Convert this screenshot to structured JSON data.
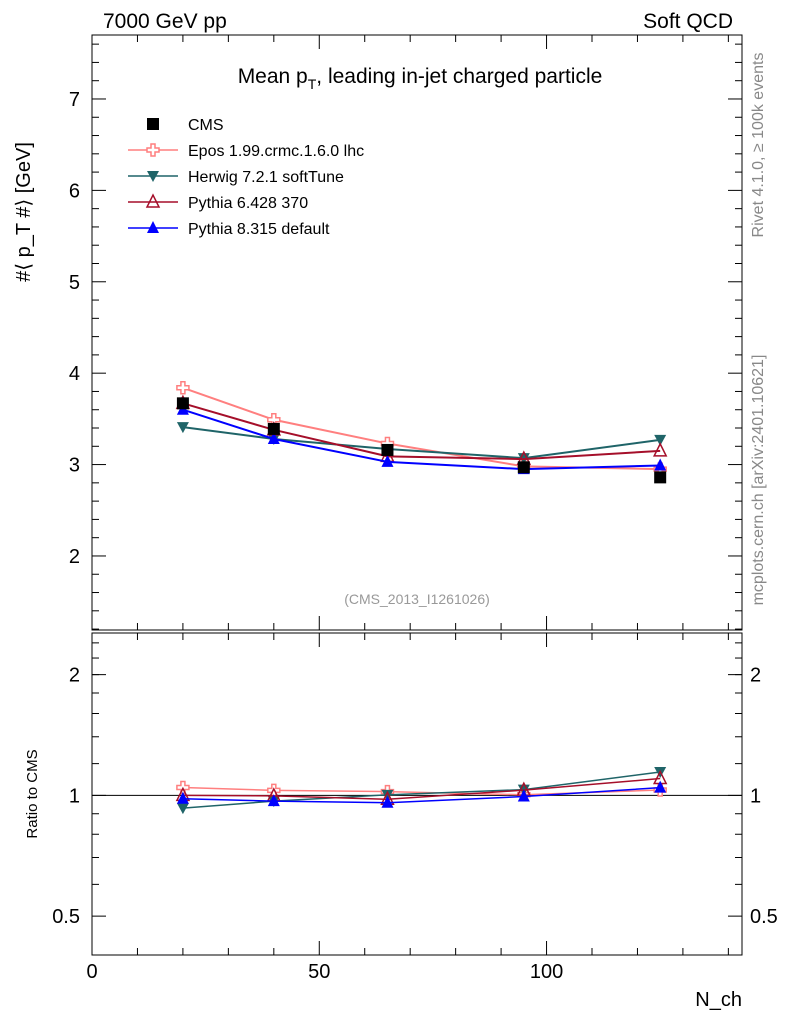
{
  "header": {
    "left": "7000 GeV pp",
    "right": "Soft QCD"
  },
  "side_labels": {
    "top": "Rivet 4.1.0, ≥ 100k events",
    "bottom": "mcplots.cern.ch [arXiv:2401.10621]"
  },
  "chart_data": [
    {
      "type": "line",
      "title": "Mean p_T, leading in-jet charged particle",
      "title_main": "Mean p",
      "title_sub": "T",
      "title_rest": ", leading in-jet charged particle",
      "ylabel": "#⟨ p_T #⟩ [GeV]",
      "ylabel_pre": "#⟨ p",
      "ylabel_sub": "T",
      "ylabel_post": " #⟩ [GeV]",
      "xlabel": "N_ch",
      "xlabel_main": "N",
      "xlabel_sub": "ch",
      "annotation": "(CMS_2013_I1261026)",
      "xlim": [
        0,
        143
      ],
      "ylim": [
        1.19,
        7.7
      ],
      "xticks": [
        0,
        50,
        100
      ],
      "yticks": [
        2,
        3,
        4,
        5,
        6,
        7
      ],
      "legend_placement": "top-left",
      "x": [
        20,
        40,
        65,
        95,
        125
      ],
      "series": [
        {
          "name": "CMS",
          "color": "#000000",
          "marker": "square",
          "values": [
            3.67,
            3.39,
            3.16,
            2.97,
            2.86
          ]
        },
        {
          "name": "Epos 1.99.crmc.1.6.0 lhc",
          "color": "#ff7f7f",
          "marker": "cross-open",
          "values": [
            3.84,
            3.49,
            3.23,
            2.98,
            2.95
          ]
        },
        {
          "name": "Herwig 7.2.1 softTune",
          "color": "#1f6468",
          "marker": "triangle-down",
          "values": [
            3.41,
            3.28,
            3.17,
            3.07,
            3.27
          ]
        },
        {
          "name": "Pythia 6.428 370",
          "color": "#a50f2a",
          "marker": "triangle-open",
          "values": [
            3.67,
            3.38,
            3.09,
            3.06,
            3.15
          ]
        },
        {
          "name": "Pythia 8.315 default",
          "color": "#0000ff",
          "marker": "triangle",
          "values": [
            3.6,
            3.28,
            3.03,
            2.95,
            2.99
          ]
        }
      ]
    },
    {
      "type": "line",
      "ylabel": "Ratio to CMS",
      "yscale": "log",
      "ylim": [
        0.4,
        2.54
      ],
      "yticks": [
        0.5,
        1,
        2
      ],
      "ytick_labels": [
        "0.5",
        "1",
        "2"
      ],
      "xticks": [
        0,
        50,
        100
      ],
      "reference": 1
    }
  ]
}
